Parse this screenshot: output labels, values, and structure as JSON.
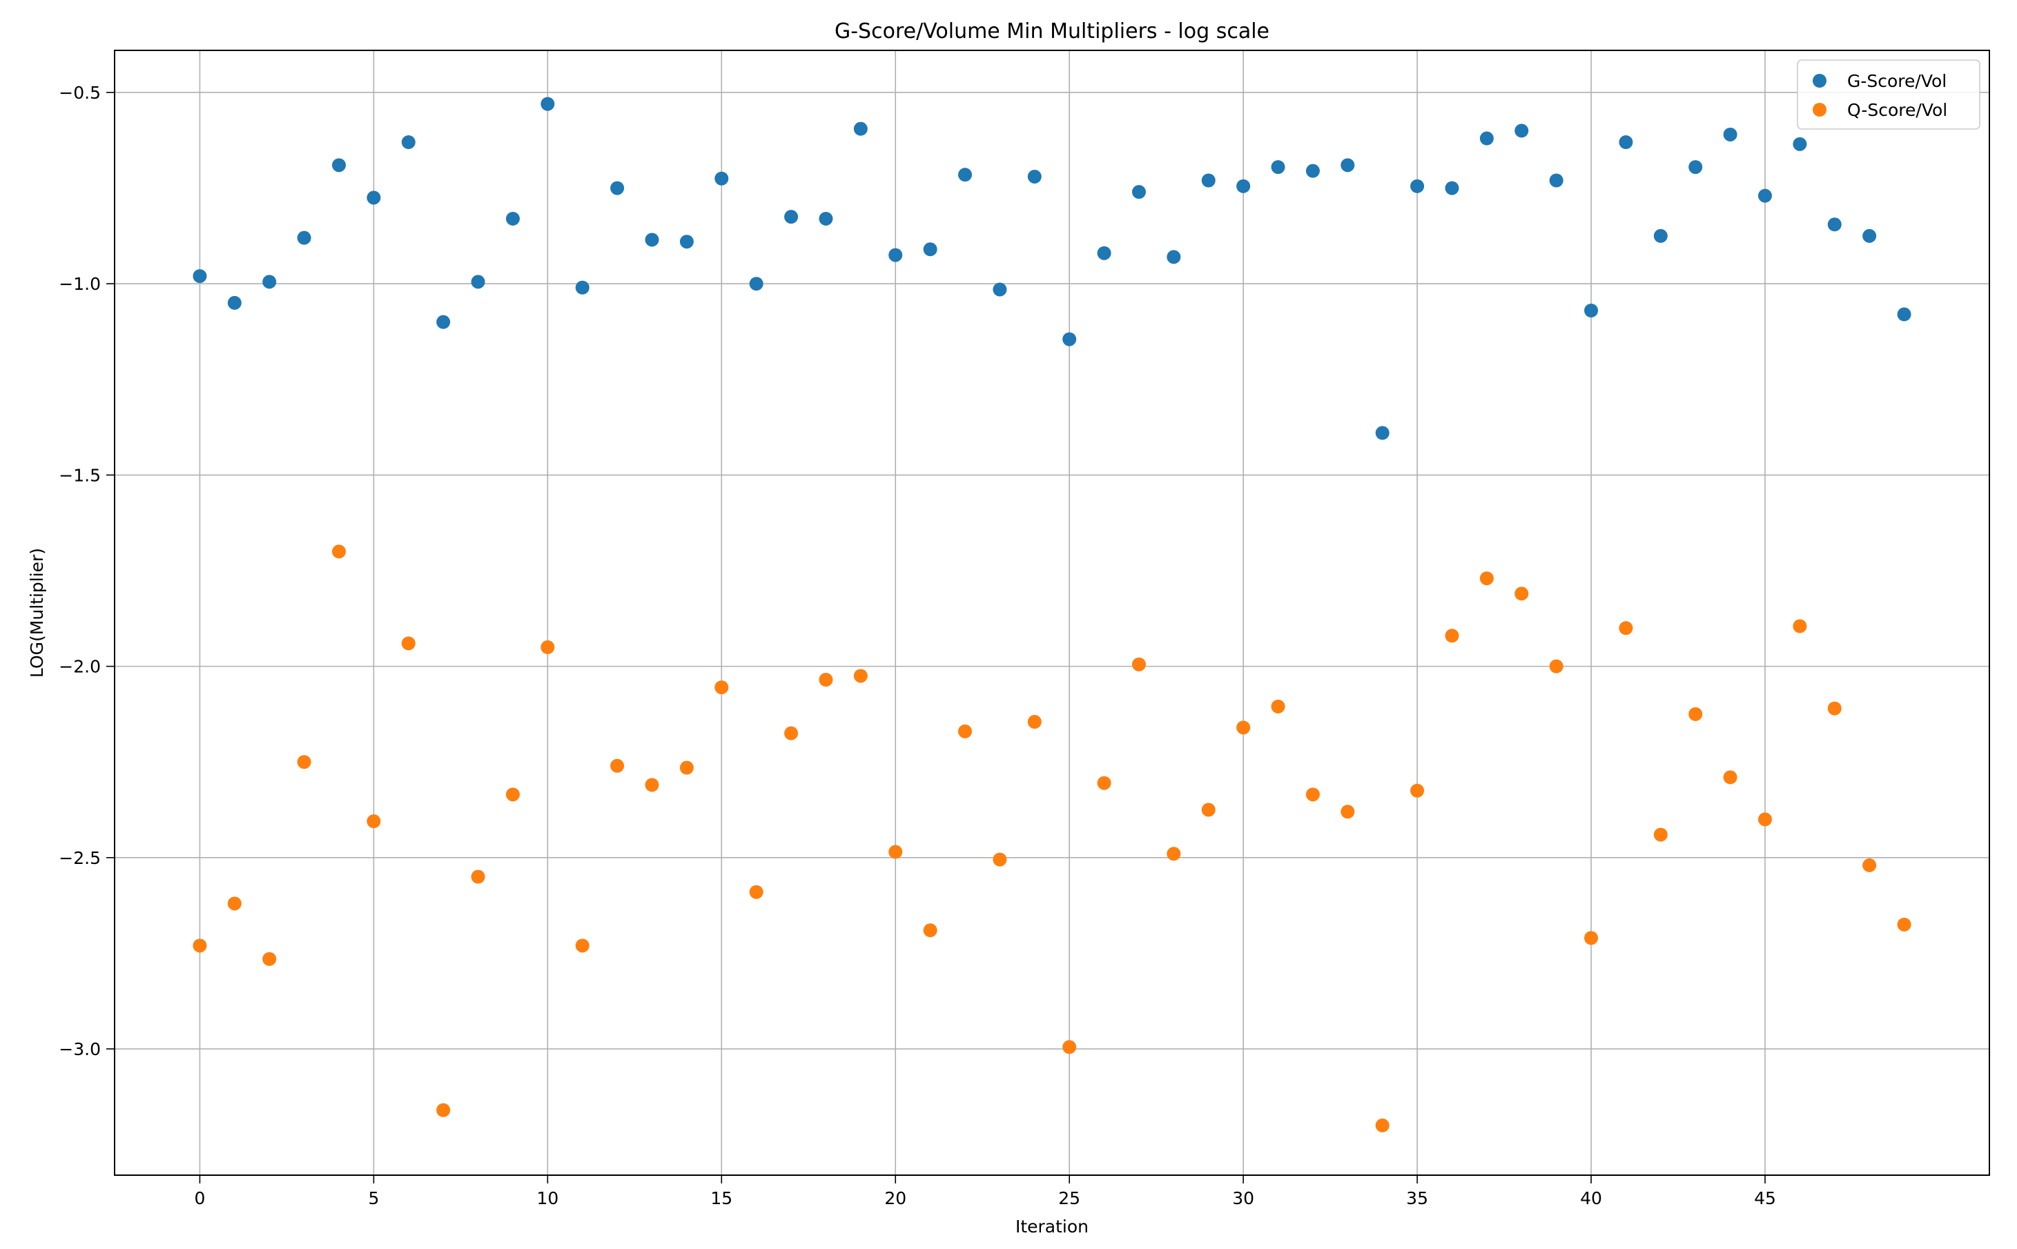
{
  "chart_data": {
    "type": "scatter",
    "title": "G-Score/Volume Min Multipliers - log scale",
    "xlabel": "Iteration",
    "ylabel": "LOG(Multiplier)",
    "xlim": [
      -2.45,
      51.45
    ],
    "ylim": [
      -3.33,
      -0.39
    ],
    "xticks": [
      0,
      5,
      10,
      15,
      20,
      25,
      30,
      35,
      40,
      45
    ],
    "yticks": [
      -3.0,
      -2.5,
      -2.0,
      -1.5,
      -1.0,
      -0.5
    ],
    "ytick_labels": [
      "−3.0",
      "−2.5",
      "−2.0",
      "−1.5",
      "−1.0",
      "−0.5"
    ],
    "grid": true,
    "legend_position": "top-right",
    "x": [
      0,
      1,
      2,
      3,
      4,
      5,
      6,
      7,
      8,
      9,
      10,
      11,
      12,
      13,
      14,
      15,
      16,
      17,
      18,
      19,
      20,
      21,
      22,
      23,
      24,
      25,
      26,
      27,
      28,
      29,
      30,
      31,
      32,
      33,
      34,
      35,
      36,
      37,
      38,
      39,
      40,
      41,
      42,
      43,
      44,
      45,
      46,
      47,
      48,
      49
    ],
    "series": [
      {
        "name": "G-Score/Vol",
        "color": "#1f77b4",
        "values": [
          -0.98,
          -1.05,
          -0.995,
          -0.88,
          -0.69,
          -0.775,
          -0.63,
          -1.1,
          -0.995,
          -0.83,
          -0.53,
          -1.01,
          -0.75,
          -0.885,
          -0.89,
          -0.725,
          -1.0,
          -0.825,
          -0.83,
          -0.595,
          -0.925,
          -0.91,
          -0.715,
          -1.015,
          -0.72,
          -1.145,
          -0.92,
          -0.76,
          -0.93,
          -0.73,
          -0.745,
          -0.695,
          -0.705,
          -0.69,
          -1.39,
          -0.745,
          -0.75,
          -0.62,
          -0.6,
          -0.73,
          -1.07,
          -0.63,
          -0.875,
          -0.695,
          -0.61,
          -0.77,
          -0.635,
          -0.845,
          -0.875,
          -1.08
        ]
      },
      {
        "name": "Q-Score/Vol",
        "color": "#ff7f0e",
        "values": [
          -2.73,
          -2.62,
          -2.765,
          -2.25,
          -1.7,
          -2.405,
          -1.94,
          -3.16,
          -2.55,
          -2.335,
          -1.95,
          -2.73,
          -2.26,
          -2.31,
          -2.265,
          -2.055,
          -2.59,
          -2.175,
          -2.035,
          -2.025,
          -2.485,
          -2.69,
          -2.17,
          -2.505,
          -2.145,
          -2.995,
          -2.305,
          -1.995,
          -2.49,
          -2.375,
          -2.16,
          -2.105,
          -2.335,
          -2.38,
          -3.2,
          -2.325,
          -1.92,
          -1.77,
          -1.81,
          -2.0,
          -2.71,
          -1.9,
          -2.44,
          -2.125,
          -2.29,
          -2.4,
          -1.895,
          -2.11,
          -2.52,
          -2.675
        ]
      }
    ]
  }
}
